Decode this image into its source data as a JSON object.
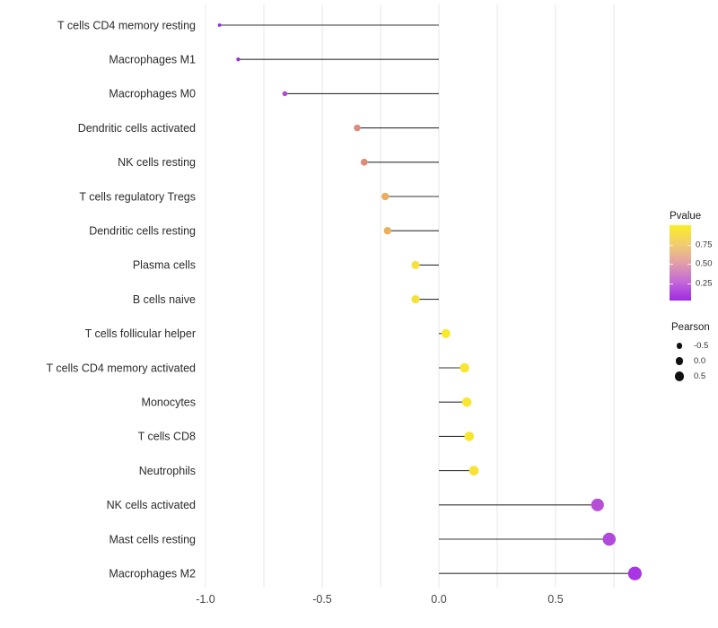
{
  "chart_data": {
    "type": "lollipop",
    "title": "",
    "xlabel": "",
    "ylabel": "",
    "x_axis": {
      "range": [
        -1.08,
        0.85
      ],
      "gridline_step": 0.25,
      "gridline_values": [
        -1.0,
        -0.75,
        -0.5,
        -0.25,
        0.0,
        0.25,
        0.5,
        0.75
      ],
      "ticks_labeled": [
        -1.0,
        -0.5,
        0.0,
        0.5
      ],
      "tick_labels": [
        "-1.0",
        "-0.5",
        "0.0",
        "0.5"
      ]
    },
    "rows": [
      {
        "label": "T cells CD4 memory resting",
        "pearson": -0.94,
        "color": "#8d2bdf"
      },
      {
        "label": "Macrophages M1",
        "pearson": -0.86,
        "color": "#9a33da"
      },
      {
        "label": "Macrophages M0",
        "pearson": -0.66,
        "color": "#b04cd2"
      },
      {
        "label": "Dendritic cells activated",
        "pearson": -0.35,
        "color": "#dd8b80"
      },
      {
        "label": "NK cells resting",
        "pearson": -0.32,
        "color": "#dd8c79"
      },
      {
        "label": "T cells regulatory  Tregs",
        "pearson": -0.23,
        "color": "#e9ad62"
      },
      {
        "label": "Dendritic cells resting",
        "pearson": -0.22,
        "color": "#eab05c"
      },
      {
        "label": "Plasma cells",
        "pearson": -0.1,
        "color": "#f5e13b"
      },
      {
        "label": "B cells naive",
        "pearson": -0.1,
        "color": "#f5e13b"
      },
      {
        "label": "T cells follicular helper",
        "pearson": 0.03,
        "color": "#f9ea28"
      },
      {
        "label": "T cells CD4 memory activated",
        "pearson": 0.11,
        "color": "#f7e632"
      },
      {
        "label": "Monocytes",
        "pearson": 0.12,
        "color": "#f7e632"
      },
      {
        "label": "T cells CD8",
        "pearson": 0.13,
        "color": "#f8e72e"
      },
      {
        "label": "Neutrophils",
        "pearson": 0.15,
        "color": "#f6e335"
      },
      {
        "label": "NK cells activated",
        "pearson": 0.68,
        "color": "#b44fd6"
      },
      {
        "label": "Mast cells resting",
        "pearson": 0.73,
        "color": "#b149dc"
      },
      {
        "label": "Macrophages M2",
        "pearson": 0.84,
        "color": "#a935e4"
      }
    ],
    "legend_pvalue": {
      "title": "Pvalue",
      "tick_labels": [
        "0.75",
        "0.50",
        "0.25"
      ],
      "gradient_stops": [
        "#f9ee21",
        "#f2cd70",
        "#e2a0a8",
        "#c468d8",
        "#9e2ae2"
      ]
    },
    "legend_pearson": {
      "title": "Pearson",
      "items": [
        {
          "label": "-0.5"
        },
        {
          "label": "0.0"
        },
        {
          "label": "0.5"
        }
      ]
    },
    "colors": {
      "segment": "#333333",
      "gridline": "#e7e7e7",
      "axis_text": "#454545",
      "category_text": "#2b2b2b"
    }
  }
}
